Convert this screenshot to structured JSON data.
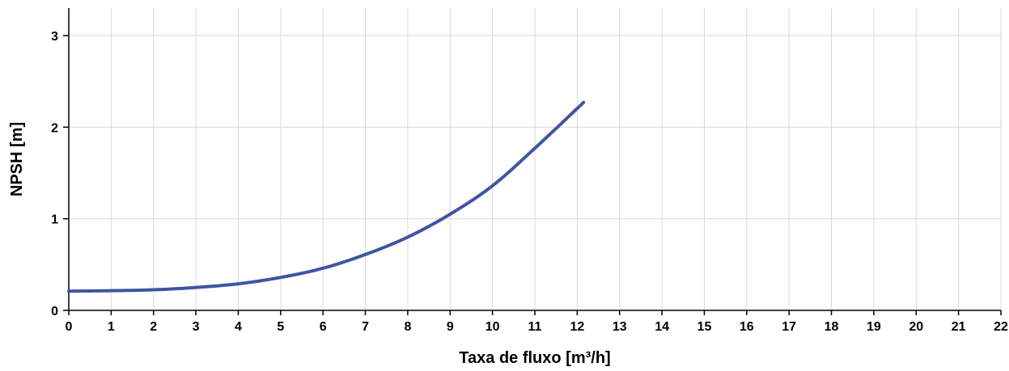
{
  "chart_data": {
    "type": "line",
    "title": "",
    "xlabel": "Taxa de fluxo [m³/h]",
    "ylabel": "NPSH [m]",
    "xlim": [
      0,
      22
    ],
    "ylim": [
      0,
      3.3
    ],
    "x_ticks": [
      "0",
      "1",
      "2",
      "3",
      "4",
      "5",
      "6",
      "7",
      "8",
      "9",
      "10",
      "11",
      "12",
      "13",
      "14",
      "15",
      "16",
      "17",
      "18",
      "19",
      "20",
      "21",
      "22"
    ],
    "y_ticks": [
      "0",
      "1",
      "2",
      "3"
    ],
    "grid": true,
    "series": [
      {
        "color": "#3f55a3",
        "x": [
          0,
          1,
          2,
          3,
          4,
          5,
          6,
          7,
          8,
          9,
          10,
          11,
          12.15
        ],
        "y": [
          0.21,
          0.215,
          0.225,
          0.25,
          0.29,
          0.36,
          0.46,
          0.61,
          0.8,
          1.05,
          1.36,
          1.77,
          2.27
        ]
      }
    ]
  }
}
